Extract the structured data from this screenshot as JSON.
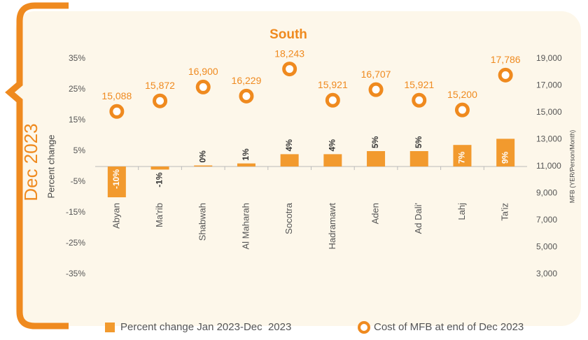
{
  "chart_data": {
    "type": "bar",
    "title": "South",
    "side_title": "Dec 2023",
    "y_label": "Percent change",
    "y2_label": "MFB (YER/Person/Month)",
    "categories": [
      "Abyan",
      "Ma'rib",
      "Shabwah",
      "Al Maharah",
      "Socotra",
      "Hadramawt",
      "Aden",
      "Ad Dali'",
      "Lahj",
      "Ta'iz"
    ],
    "series": [
      {
        "name": "Percent change Jan 2023-Dec  2023",
        "type": "bar",
        "color": "#f29a2e",
        "values": [
          -10,
          -1,
          0,
          1,
          4,
          4,
          5,
          5,
          7,
          9
        ],
        "value_labels": [
          "-10%",
          "-1%",
          "0%",
          "1%",
          "4%",
          "4%",
          "5%",
          "5%",
          "7%",
          "9%"
        ]
      },
      {
        "name": "Cost of MFB at end of Dec 2023",
        "type": "scatter",
        "axis": "y2",
        "color": "#ef8a1f",
        "values": [
          15088,
          15872,
          16900,
          16229,
          18243,
          15921,
          16707,
          15921,
          15200,
          17786
        ],
        "value_labels": [
          "15,088",
          "15,872",
          "16,900",
          "16,229",
          "18,243",
          "15,921",
          "16,707",
          "15,921",
          "15,200",
          "17,786"
        ]
      }
    ],
    "ylim": [
      -35,
      35
    ],
    "yticks": [
      {
        "value": 35,
        "label": "35%"
      },
      {
        "value": 25,
        "label": "25%"
      },
      {
        "value": 15,
        "label": "15%"
      },
      {
        "value": 5,
        "label": "5%"
      },
      {
        "value": -5,
        "label": "-5%"
      },
      {
        "value": -15,
        "label": "-15%"
      },
      {
        "value": -25,
        "label": "-25%"
      },
      {
        "value": -35,
        "label": "-35%"
      }
    ],
    "y2lim": [
      3000,
      19000
    ],
    "y2ticks": [
      {
        "value": 19000,
        "label": "19,000"
      },
      {
        "value": 17000,
        "label": "17,000"
      },
      {
        "value": 15000,
        "label": "15,000"
      },
      {
        "value": 13000,
        "label": "13,000"
      },
      {
        "value": 11000,
        "label": "11,000"
      },
      {
        "value": 9000,
        "label": "9,000"
      },
      {
        "value": 7000,
        "label": "7,000"
      },
      {
        "value": 5000,
        "label": "5,000"
      },
      {
        "value": 3000,
        "label": "3,000"
      }
    ],
    "legend": "bottom"
  }
}
